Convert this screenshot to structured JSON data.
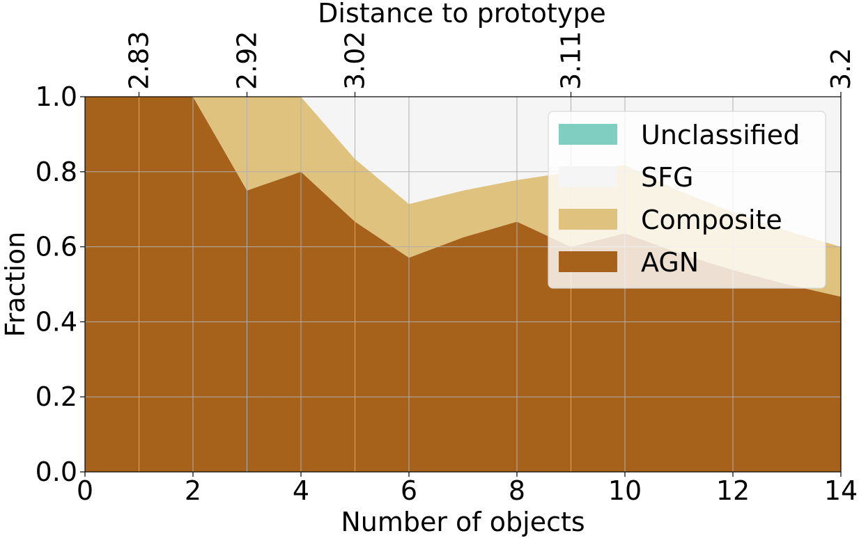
{
  "chart_data": {
    "type": "area",
    "stacked": true,
    "x": [
      0,
      1,
      2,
      3,
      4,
      5,
      6,
      7,
      8,
      9,
      10,
      11,
      12,
      13,
      14
    ],
    "series": [
      {
        "name": "AGN",
        "color": "#a6611a",
        "values": [
          1.0,
          1.0,
          1.0,
          0.75,
          0.8,
          0.667,
          0.571,
          0.625,
          0.667,
          0.6,
          0.636,
          0.583,
          0.538,
          0.5,
          0.467
        ]
      },
      {
        "name": "Composite",
        "color": "#dfc27d",
        "values": [
          0.0,
          0.0,
          0.0,
          0.25,
          0.2,
          0.167,
          0.143,
          0.125,
          0.111,
          0.2,
          0.182,
          0.167,
          0.154,
          0.143,
          0.133
        ]
      },
      {
        "name": "SFG",
        "color": "#f5f5f5",
        "values": [
          0.0,
          0.0,
          0.0,
          0.0,
          0.0,
          0.166,
          0.286,
          0.25,
          0.222,
          0.2,
          0.182,
          0.25,
          0.308,
          0.357,
          0.4
        ]
      },
      {
        "name": "Unclassified",
        "color": "#80cdc1",
        "values": [
          0,
          0,
          0,
          0,
          0,
          0,
          0,
          0,
          0,
          0,
          0,
          0,
          0,
          0,
          0
        ]
      }
    ],
    "xlabel": "Number of objects",
    "ylabel": "Fraction",
    "xlim": [
      0,
      14
    ],
    "ylim": [
      0,
      1
    ],
    "xticks": [
      0,
      2,
      4,
      6,
      8,
      10,
      12,
      14
    ],
    "yticks": [
      0.0,
      0.2,
      0.4,
      0.6,
      0.8,
      1.0
    ],
    "ytick_labels": [
      "0.0",
      "0.2",
      "0.4",
      "0.6",
      "0.8",
      "1.0"
    ],
    "top_axis": {
      "label": "Distance to prototype",
      "ticks": [
        1,
        3,
        5,
        9,
        14
      ],
      "tick_labels": [
        "2.83",
        "2.92",
        "3.02",
        "3.11",
        "3.2"
      ]
    },
    "legend": {
      "placement": "upper right",
      "order": [
        "Unclassified",
        "SFG",
        "Composite",
        "AGN"
      ]
    },
    "grid": true
  }
}
